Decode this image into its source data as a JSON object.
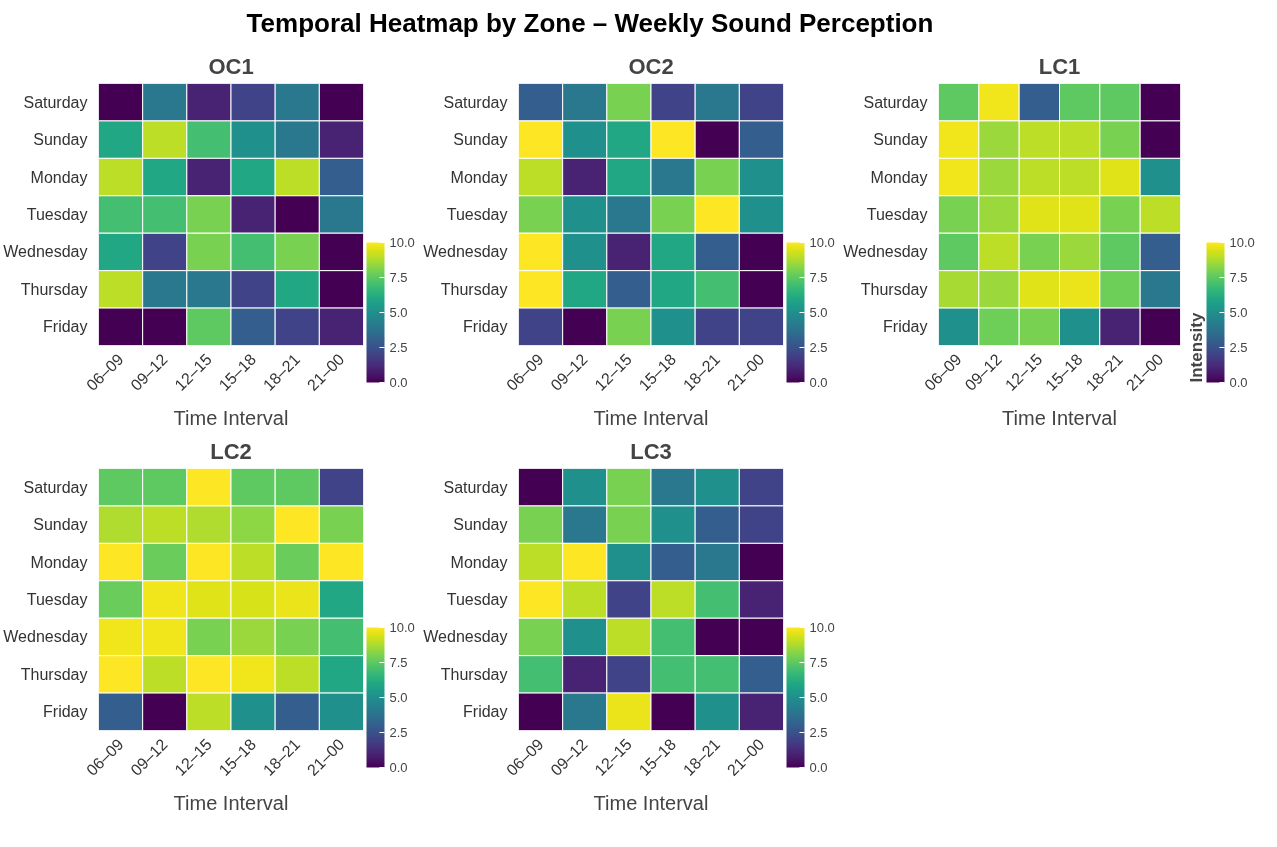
{
  "chart_data": [
    {
      "type": "heatmap",
      "title": "OC1",
      "annotations": [
        "Temporal Heatmap by Zone – Weekly Sound Perception"
      ],
      "xlabel": "Time Interval",
      "categories": [
        "06–09",
        "09–12",
        "12–15",
        "15–18",
        "18–21",
        "21–00"
      ],
      "y_categories": [
        "Saturday",
        "Sunday",
        "Monday",
        "Tuesday",
        "Wednesday",
        "Thursday",
        "Friday"
      ],
      "clim": [
        0,
        10
      ],
      "cticks": [
        {
          "value": 0,
          "label": "0.0"
        },
        {
          "value": 2.5,
          "label": "2.5"
        },
        {
          "value": 5,
          "label": "5.0"
        },
        {
          "value": 7.5,
          "label": "7.5"
        },
        {
          "value": 10,
          "label": "10.0"
        }
      ],
      "cells": [
        [
          0,
          4,
          1,
          2,
          4,
          0
        ],
        [
          6,
          9,
          7,
          5,
          4,
          1
        ],
        [
          9,
          6,
          1,
          6,
          9,
          3
        ],
        [
          7,
          7,
          8,
          1,
          0,
          4
        ],
        [
          6,
          2,
          8,
          7,
          8,
          0
        ],
        [
          9,
          4,
          4,
          2,
          6,
          0
        ],
        [
          0,
          0,
          7.5,
          3,
          2,
          1
        ]
      ]
    },
    {
      "type": "heatmap",
      "title": "OC2",
      "xlabel": "Time Interval",
      "categories": [
        "06–09",
        "09–12",
        "12–15",
        "15–18",
        "18–21",
        "21–00"
      ],
      "y_categories": [
        "Saturday",
        "Sunday",
        "Monday",
        "Tuesday",
        "Wednesday",
        "Thursday",
        "Friday"
      ],
      "clim": [
        0,
        10
      ],
      "cticks": [
        {
          "value": 0,
          "label": "0.0"
        },
        {
          "value": 2.5,
          "label": "2.5"
        },
        {
          "value": 5,
          "label": "5.0"
        },
        {
          "value": 7.5,
          "label": "7.5"
        },
        {
          "value": 10,
          "label": "10.0"
        }
      ],
      "cells": [
        [
          3,
          4,
          8,
          2,
          4,
          2
        ],
        [
          10,
          5,
          6,
          10,
          0,
          3
        ],
        [
          9,
          1,
          6,
          4,
          8,
          5
        ],
        [
          8,
          5,
          4,
          8,
          10,
          5
        ],
        [
          10,
          5,
          1,
          6,
          3,
          0
        ],
        [
          10,
          6,
          3,
          6,
          7,
          0
        ],
        [
          2,
          0,
          8,
          5,
          2,
          2
        ]
      ]
    },
    {
      "type": "heatmap",
      "title": "LC1",
      "xlabel": "Time Interval",
      "categories": [
        "06–09",
        "09–12",
        "12–15",
        "15–18",
        "18–21",
        "21–00"
      ],
      "y_categories": [
        "Saturday",
        "Sunday",
        "Monday",
        "Tuesday",
        "Wednesday",
        "Thursday",
        "Friday"
      ],
      "clim": [
        0,
        10
      ],
      "clabel": "Intensity",
      "cticks": [
        {
          "value": 0,
          "label": "0.0"
        },
        {
          "value": 2.5,
          "label": "2.5"
        },
        {
          "value": 5,
          "label": "5.0"
        },
        {
          "value": 7.5,
          "label": "7.5"
        },
        {
          "value": 10,
          "label": "10.0"
        }
      ],
      "cells": [
        [
          7.5,
          9.8,
          3,
          7.5,
          7.5,
          0
        ],
        [
          9.8,
          8.5,
          9,
          9,
          8,
          0
        ],
        [
          9.8,
          8.5,
          9,
          9,
          9.5,
          5
        ],
        [
          8,
          8.5,
          9.5,
          9.5,
          8,
          9
        ],
        [
          7.5,
          9,
          8,
          8.5,
          7.5,
          3
        ],
        [
          8.7,
          8.5,
          9.5,
          9.7,
          7.8,
          4
        ],
        [
          5,
          7.8,
          8,
          5,
          1,
          0
        ]
      ]
    },
    {
      "type": "heatmap",
      "title": "LC2",
      "xlabel": "Time Interval",
      "categories": [
        "06–09",
        "09–12",
        "12–15",
        "15–18",
        "18–21",
        "21–00"
      ],
      "y_categories": [
        "Saturday",
        "Sunday",
        "Monday",
        "Tuesday",
        "Wednesday",
        "Thursday",
        "Friday"
      ],
      "clim": [
        0,
        10
      ],
      "cticks": [
        {
          "value": 0,
          "label": "0.0"
        },
        {
          "value": 2.5,
          "label": "2.5"
        },
        {
          "value": 5,
          "label": "5.0"
        },
        {
          "value": 7.5,
          "label": "7.5"
        },
        {
          "value": 10,
          "label": "10.0"
        }
      ],
      "cells": [
        [
          7.5,
          7.5,
          10,
          7.5,
          7.5,
          2
        ],
        [
          8.8,
          9,
          8.8,
          8.3,
          10,
          8
        ],
        [
          10,
          7.7,
          10,
          9,
          7.7,
          10
        ],
        [
          7.7,
          9.8,
          9.5,
          9.4,
          9.7,
          6
        ],
        [
          9.8,
          9.8,
          8,
          8.5,
          8,
          7
        ],
        [
          10,
          9,
          10,
          9.8,
          9,
          6
        ],
        [
          3,
          0,
          9,
          5,
          3,
          5
        ]
      ]
    },
    {
      "type": "heatmap",
      "title": "LC3",
      "xlabel": "Time Interval",
      "categories": [
        "06–09",
        "09–12",
        "12–15",
        "15–18",
        "18–21",
        "21–00"
      ],
      "y_categories": [
        "Saturday",
        "Sunday",
        "Monday",
        "Tuesday",
        "Wednesday",
        "Thursday",
        "Friday"
      ],
      "clim": [
        0,
        10
      ],
      "cticks": [
        {
          "value": 0,
          "label": "0.0"
        },
        {
          "value": 2.5,
          "label": "2.5"
        },
        {
          "value": 5,
          "label": "5.0"
        },
        {
          "value": 7.5,
          "label": "7.5"
        },
        {
          "value": 10,
          "label": "10.0"
        }
      ],
      "cells": [
        [
          0,
          5,
          8,
          4,
          5,
          2
        ],
        [
          8,
          4,
          8,
          5,
          3,
          2
        ],
        [
          9,
          10,
          5,
          3,
          4,
          0
        ],
        [
          10,
          9,
          2,
          9,
          7,
          1
        ],
        [
          8,
          5,
          9,
          7,
          0,
          0
        ],
        [
          7,
          1,
          2,
          7,
          7,
          3
        ],
        [
          0,
          4,
          9.7,
          0,
          5,
          1
        ]
      ]
    }
  ]
}
